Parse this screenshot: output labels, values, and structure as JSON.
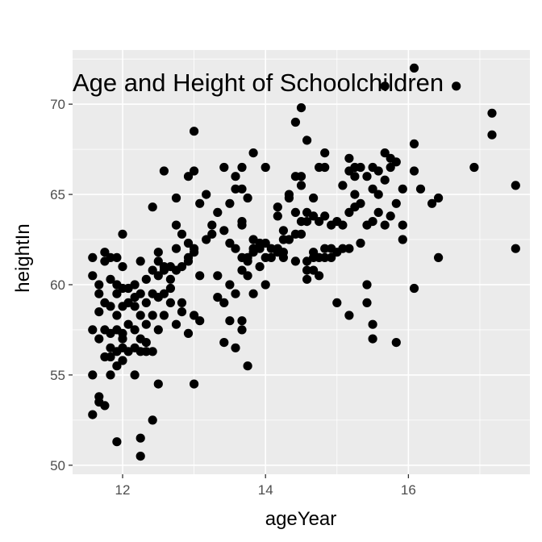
{
  "chart_data": {
    "type": "scatter",
    "title": "Age and Height of Schoolchildren",
    "xlabel": "ageYear",
    "ylabel": "heightIn",
    "xlim": [
      11.3,
      17.7
    ],
    "ylim": [
      49.5,
      73.0
    ],
    "xticks": [
      12,
      14,
      16
    ],
    "yticks": [
      50,
      55,
      60,
      65,
      70
    ],
    "xticks_minor": [
      13,
      15,
      17
    ],
    "yticks_minor": [
      52.5,
      57.5,
      62.5,
      67.5,
      72.5
    ],
    "grid": true,
    "panel_color": "#ebebeb",
    "point_color": "#000000",
    "points": [
      [
        11.58,
        61.5
      ],
      [
        11.58,
        57.5
      ],
      [
        11.58,
        55.0
      ],
      [
        11.58,
        52.8
      ],
      [
        11.58,
        60.5
      ],
      [
        11.67,
        59.5
      ],
      [
        11.67,
        58.5
      ],
      [
        11.67,
        53.8
      ],
      [
        11.67,
        53.5
      ],
      [
        11.67,
        57.0
      ],
      [
        11.67,
        60.0
      ],
      [
        11.75,
        61.8
      ],
      [
        11.75,
        61.3
      ],
      [
        11.75,
        57.5
      ],
      [
        11.75,
        56.0
      ],
      [
        11.75,
        53.3
      ],
      [
        11.75,
        59.0
      ],
      [
        11.83,
        61.5
      ],
      [
        11.83,
        58.8
      ],
      [
        11.83,
        56.5
      ],
      [
        11.83,
        56.0
      ],
      [
        11.83,
        55.0
      ],
      [
        11.83,
        60.3
      ],
      [
        11.83,
        57.3
      ],
      [
        11.92,
        61.5
      ],
      [
        11.92,
        58.3
      ],
      [
        11.92,
        57.5
      ],
      [
        11.92,
        56.3
      ],
      [
        11.92,
        55.5
      ],
      [
        11.92,
        51.3
      ],
      [
        11.92,
        60.0
      ],
      [
        11.92,
        59.5
      ],
      [
        12.0,
        62.8
      ],
      [
        12.0,
        61.0
      ],
      [
        12.0,
        59.8
      ],
      [
        12.0,
        58.8
      ],
      [
        12.0,
        57.3
      ],
      [
        12.0,
        57.0
      ],
      [
        12.0,
        56.5
      ],
      [
        12.0,
        55.8
      ],
      [
        12.08,
        59.0
      ],
      [
        12.08,
        57.8
      ],
      [
        12.08,
        56.3
      ],
      [
        12.08,
        59.8
      ],
      [
        12.17,
        60.0
      ],
      [
        12.17,
        58.8
      ],
      [
        12.17,
        57.5
      ],
      [
        12.17,
        56.5
      ],
      [
        12.17,
        55.0
      ],
      [
        12.17,
        59.3
      ],
      [
        12.25,
        61.3
      ],
      [
        12.25,
        59.5
      ],
      [
        12.25,
        58.3
      ],
      [
        12.25,
        57.0
      ],
      [
        12.25,
        51.5
      ],
      [
        12.25,
        50.5
      ],
      [
        12.25,
        56.3
      ],
      [
        12.33,
        60.3
      ],
      [
        12.33,
        59.0
      ],
      [
        12.33,
        57.8
      ],
      [
        12.33,
        56.8
      ],
      [
        12.33,
        56.3
      ],
      [
        12.42,
        64.3
      ],
      [
        12.42,
        60.8
      ],
      [
        12.42,
        58.3
      ],
      [
        12.42,
        56.3
      ],
      [
        12.42,
        52.5
      ],
      [
        12.42,
        59.5
      ],
      [
        12.5,
        61.8
      ],
      [
        12.5,
        61.3
      ],
      [
        12.5,
        60.5
      ],
      [
        12.5,
        59.3
      ],
      [
        12.5,
        57.5
      ],
      [
        12.5,
        54.5
      ],
      [
        12.58,
        66.3
      ],
      [
        12.58,
        61.0
      ],
      [
        12.58,
        59.5
      ],
      [
        12.58,
        58.3
      ],
      [
        12.58,
        60.8
      ],
      [
        12.67,
        61.0
      ],
      [
        12.67,
        60.3
      ],
      [
        12.67,
        59.8
      ],
      [
        12.67,
        59.0
      ],
      [
        12.75,
        64.8
      ],
      [
        12.75,
        63.3
      ],
      [
        12.75,
        62.0
      ],
      [
        12.75,
        60.8
      ],
      [
        12.75,
        57.8
      ],
      [
        12.83,
        62.8
      ],
      [
        12.83,
        61.0
      ],
      [
        12.83,
        59.0
      ],
      [
        12.83,
        58.5
      ],
      [
        12.92,
        66.0
      ],
      [
        12.92,
        62.3
      ],
      [
        12.92,
        61.5
      ],
      [
        12.92,
        61.3
      ],
      [
        12.92,
        57.3
      ],
      [
        13.0,
        68.5
      ],
      [
        13.0,
        66.3
      ],
      [
        13.0,
        62.0
      ],
      [
        13.0,
        61.8
      ],
      [
        13.0,
        58.3
      ],
      [
        13.0,
        54.5
      ],
      [
        13.08,
        64.5
      ],
      [
        13.08,
        60.5
      ],
      [
        13.08,
        58.0
      ],
      [
        13.17,
        65.0
      ],
      [
        13.17,
        62.5
      ],
      [
        13.25,
        63.3
      ],
      [
        13.25,
        62.8
      ],
      [
        13.33,
        64.0
      ],
      [
        13.33,
        60.5
      ],
      [
        13.33,
        59.3
      ],
      [
        13.42,
        66.5
      ],
      [
        13.42,
        63.0
      ],
      [
        13.42,
        59.0
      ],
      [
        13.42,
        56.8
      ],
      [
        13.5,
        64.5
      ],
      [
        13.5,
        62.3
      ],
      [
        13.5,
        60.0
      ],
      [
        13.5,
        58.0
      ],
      [
        13.58,
        66.0
      ],
      [
        13.58,
        65.3
      ],
      [
        13.58,
        62.0
      ],
      [
        13.58,
        59.5
      ],
      [
        13.58,
        56.5
      ],
      [
        13.67,
        66.5
      ],
      [
        13.67,
        65.3
      ],
      [
        13.67,
        63.5
      ],
      [
        13.67,
        63.3
      ],
      [
        13.67,
        61.5
      ],
      [
        13.67,
        60.8
      ],
      [
        13.67,
        58.0
      ],
      [
        13.67,
        57.5
      ],
      [
        13.75,
        64.8
      ],
      [
        13.75,
        61.3
      ],
      [
        13.75,
        60.5
      ],
      [
        13.75,
        55.5
      ],
      [
        13.75,
        61.5
      ],
      [
        13.83,
        67.3
      ],
      [
        13.83,
        62.5
      ],
      [
        13.83,
        61.8
      ],
      [
        13.83,
        59.5
      ],
      [
        13.83,
        62.0
      ],
      [
        13.92,
        62.3
      ],
      [
        13.92,
        61.0
      ],
      [
        13.92,
        62.0
      ],
      [
        14.0,
        66.5
      ],
      [
        14.0,
        62.3
      ],
      [
        14.0,
        60.0
      ],
      [
        14.0,
        61.5
      ],
      [
        14.08,
        61.5
      ],
      [
        14.08,
        62.0
      ],
      [
        14.17,
        64.3
      ],
      [
        14.17,
        63.8
      ],
      [
        14.17,
        61.8
      ],
      [
        14.17,
        62.0
      ],
      [
        14.25,
        63.0
      ],
      [
        14.25,
        62.5
      ],
      [
        14.25,
        61.8
      ],
      [
        14.25,
        61.5
      ],
      [
        14.33,
        65.0
      ],
      [
        14.33,
        64.8
      ],
      [
        14.33,
        62.5
      ],
      [
        14.42,
        69.0
      ],
      [
        14.42,
        66.0
      ],
      [
        14.42,
        62.8
      ],
      [
        14.42,
        61.3
      ],
      [
        14.42,
        64.0
      ],
      [
        14.5,
        69.8
      ],
      [
        14.5,
        66.0
      ],
      [
        14.5,
        65.5
      ],
      [
        14.5,
        63.5
      ],
      [
        14.5,
        62.8
      ],
      [
        14.58,
        68.0
      ],
      [
        14.58,
        64.0
      ],
      [
        14.58,
        63.5
      ],
      [
        14.58,
        61.3
      ],
      [
        14.58,
        60.8
      ],
      [
        14.58,
        60.3
      ],
      [
        14.67,
        64.8
      ],
      [
        14.67,
        63.8
      ],
      [
        14.67,
        61.8
      ],
      [
        14.67,
        61.5
      ],
      [
        14.67,
        60.8
      ],
      [
        14.75,
        66.5
      ],
      [
        14.75,
        63.5
      ],
      [
        14.75,
        60.5
      ],
      [
        14.75,
        61.5
      ],
      [
        14.83,
        67.3
      ],
      [
        14.83,
        66.5
      ],
      [
        14.83,
        63.8
      ],
      [
        14.83,
        61.5
      ],
      [
        14.83,
        62.0
      ],
      [
        14.92,
        63.3
      ],
      [
        14.92,
        61.5
      ],
      [
        14.92,
        62.0
      ],
      [
        15.0,
        63.5
      ],
      [
        15.0,
        59.0
      ],
      [
        15.0,
        61.8
      ],
      [
        15.08,
        65.5
      ],
      [
        15.08,
        63.3
      ],
      [
        15.08,
        62.0
      ],
      [
        15.17,
        67.0
      ],
      [
        15.17,
        66.3
      ],
      [
        15.17,
        64.0
      ],
      [
        15.17,
        62.0
      ],
      [
        15.17,
        58.3
      ],
      [
        15.25,
        66.5
      ],
      [
        15.25,
        65.0
      ],
      [
        15.25,
        64.3
      ],
      [
        15.25,
        66.0
      ],
      [
        15.33,
        66.5
      ],
      [
        15.33,
        62.3
      ],
      [
        15.33,
        64.5
      ],
      [
        15.42,
        66.0
      ],
      [
        15.42,
        63.3
      ],
      [
        15.42,
        60.0
      ],
      [
        15.42,
        59.0
      ],
      [
        15.5,
        66.5
      ],
      [
        15.5,
        65.3
      ],
      [
        15.5,
        63.5
      ],
      [
        15.5,
        57.8
      ],
      [
        15.5,
        57.0
      ],
      [
        15.58,
        66.3
      ],
      [
        15.58,
        64.0
      ],
      [
        15.58,
        65.0
      ],
      [
        15.67,
        71.0
      ],
      [
        15.67,
        67.3
      ],
      [
        15.67,
        65.8
      ],
      [
        15.67,
        63.3
      ],
      [
        15.75,
        67.0
      ],
      [
        15.75,
        66.5
      ],
      [
        15.75,
        63.8
      ],
      [
        15.83,
        66.8
      ],
      [
        15.83,
        56.8
      ],
      [
        15.83,
        64.5
      ],
      [
        15.92,
        65.3
      ],
      [
        15.92,
        63.3
      ],
      [
        15.92,
        62.5
      ],
      [
        16.08,
        72.0
      ],
      [
        16.08,
        67.8
      ],
      [
        16.08,
        66.3
      ],
      [
        16.08,
        59.8
      ],
      [
        16.17,
        65.3
      ],
      [
        16.33,
        64.5
      ],
      [
        16.42,
        64.8
      ],
      [
        16.42,
        61.5
      ],
      [
        16.67,
        71.0
      ],
      [
        16.92,
        66.5
      ],
      [
        17.17,
        69.5
      ],
      [
        17.17,
        68.3
      ],
      [
        17.5,
        65.5
      ],
      [
        17.5,
        62.0
      ]
    ]
  }
}
